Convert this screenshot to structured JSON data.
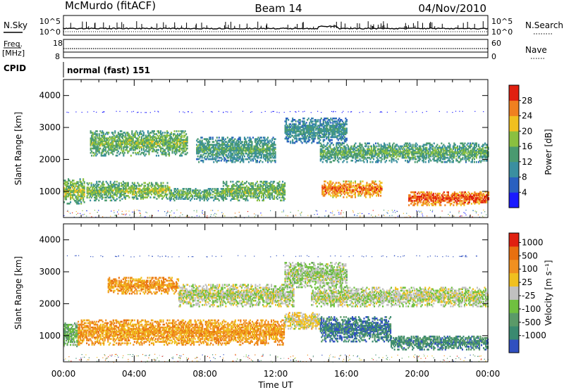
{
  "header": {
    "station": "McMurdo (fitACF)",
    "beam": "Beam 14",
    "date": "04/Nov/2010"
  },
  "noise_panel": {
    "left_label": "N.Sky",
    "right_label": "N.Search",
    "left_ticks": [
      "10^5",
      "10^0"
    ],
    "right_ticks": [
      "10^5",
      "10^0"
    ]
  },
  "freq_panel": {
    "left_label_1": "Freq.",
    "left_label_2": "[MHz]",
    "right_label": "Nave",
    "left_ticks": [
      "18",
      "8"
    ],
    "right_ticks": [
      "60",
      "0"
    ]
  },
  "cpid": {
    "label": "CPID",
    "value": "normal (fast) 151"
  },
  "xaxis": {
    "label": "Time UT",
    "ticks": [
      "00:00",
      "04:00",
      "08:00",
      "12:00",
      "16:00",
      "20:00",
      "00:00"
    ]
  },
  "colors": {
    "power": [
      "#1a1aff",
      "#2a60c0",
      "#3a8fa0",
      "#4a9a70",
      "#8ac040",
      "#f0c020",
      "#f08020",
      "#e02010"
    ],
    "velocity": [
      "#3050c0",
      "#3a8a70",
      "#5a9a68",
      "#70c040",
      "#c0c0c0",
      "#f0c020",
      "#f09020",
      "#e87010",
      "#e02010"
    ]
  },
  "chart_data": [
    {
      "type": "heatmap",
      "panel": "power",
      "xlabel": "",
      "ylabel": "Slant Range [km]",
      "xlim": [
        0,
        24
      ],
      "ylim": [
        180,
        4500
      ],
      "yticks": [
        "1000",
        "2000",
        "3000",
        "4000"
      ],
      "colorbar_label": "Power [dB]",
      "colorbar_ticks": [
        "28",
        "24",
        "20",
        "16",
        "12",
        "8",
        "4"
      ],
      "colorbar_range": [
        0,
        32
      ],
      "bands": [
        {
          "t0": 0.0,
          "t1": 1.2,
          "r0": 600,
          "r1": 1400,
          "level": 0.45
        },
        {
          "t0": 1.3,
          "t1": 3.5,
          "r0": 700,
          "r1": 1300,
          "level": 0.4
        },
        {
          "t0": 3.5,
          "t1": 6.0,
          "r0": 750,
          "r1": 1250,
          "level": 0.45
        },
        {
          "t0": 6.0,
          "t1": 9.0,
          "r0": 700,
          "r1": 1100,
          "level": 0.35
        },
        {
          "t0": 9.0,
          "t1": 12.5,
          "r0": 700,
          "r1": 1300,
          "level": 0.4
        },
        {
          "t0": 14.6,
          "t1": 18.0,
          "r0": 800,
          "r1": 1300,
          "level": 0.7
        },
        {
          "t0": 19.5,
          "t1": 24.0,
          "r0": 550,
          "r1": 1000,
          "level": 0.75
        },
        {
          "t0": 1.5,
          "t1": 7.0,
          "r0": 2100,
          "r1": 2900,
          "level": 0.4
        },
        {
          "t0": 7.5,
          "t1": 12.0,
          "r0": 1900,
          "r1": 2700,
          "level": 0.3
        },
        {
          "t0": 14.5,
          "t1": 24.0,
          "r0": 1900,
          "r1": 2500,
          "level": 0.35
        },
        {
          "t0": 12.5,
          "t1": 16.0,
          "r0": 2500,
          "r1": 3300,
          "level": 0.25
        }
      ]
    },
    {
      "type": "heatmap",
      "panel": "velocity",
      "xlabel": "Time UT",
      "ylabel": "Slant Range [km]",
      "xlim": [
        0,
        24
      ],
      "ylim": [
        180,
        4500
      ],
      "yticks": [
        "1000",
        "2000",
        "3000",
        "4000"
      ],
      "colorbar_label": "Velocity [m s⁻¹]",
      "colorbar_ticks": [
        "1000",
        "500",
        "100",
        "25",
        "-25",
        "-100",
        "-500",
        "-1000"
      ],
      "colorbar_range": [
        -1000,
        1000
      ],
      "bands": [
        {
          "t0": 0.0,
          "t1": 0.8,
          "r0": 650,
          "r1": 1400,
          "level": 0.35
        },
        {
          "t0": 0.8,
          "t1": 12.5,
          "r0": 700,
          "r1": 1500,
          "level": 0.7
        },
        {
          "t0": 12.5,
          "t1": 14.5,
          "r0": 1200,
          "r1": 1700,
          "level": 0.55
        },
        {
          "t0": 14.5,
          "t1": 18.5,
          "r0": 800,
          "r1": 1600,
          "level": 0.15
        },
        {
          "t0": 18.5,
          "t1": 24.0,
          "r0": 550,
          "r1": 1000,
          "level": 0.2
        },
        {
          "t0": 2.5,
          "t1": 6.5,
          "r0": 2300,
          "r1": 2800,
          "level": 0.72
        },
        {
          "t0": 6.5,
          "t1": 13.0,
          "r0": 1900,
          "r1": 2600,
          "level": 0.48
        },
        {
          "t0": 14.0,
          "t1": 24.0,
          "r0": 1900,
          "r1": 2500,
          "level": 0.48
        },
        {
          "t0": 12.5,
          "t1": 16.0,
          "r0": 2500,
          "r1": 3300,
          "level": 0.45
        }
      ]
    }
  ]
}
